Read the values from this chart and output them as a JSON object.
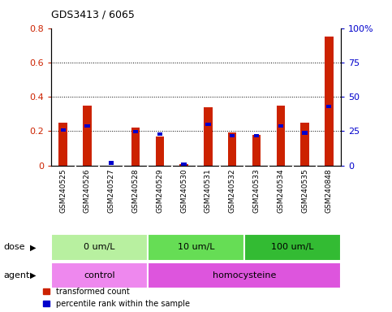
{
  "title": "GDS3413 / 6065",
  "samples": [
    "GSM240525",
    "GSM240526",
    "GSM240527",
    "GSM240528",
    "GSM240529",
    "GSM240530",
    "GSM240531",
    "GSM240532",
    "GSM240533",
    "GSM240534",
    "GSM240535",
    "GSM240848"
  ],
  "red_values": [
    0.25,
    0.35,
    0.0,
    0.22,
    0.17,
    0.005,
    0.34,
    0.19,
    0.18,
    0.35,
    0.25,
    0.75
  ],
  "blue_percentiles": [
    27,
    30,
    3,
    26,
    24,
    2,
    31,
    23,
    23,
    30,
    25,
    44
  ],
  "ylim_left": [
    0,
    0.8
  ],
  "ylim_right": [
    0,
    100
  ],
  "yticks_left": [
    0,
    0.2,
    0.4,
    0.6,
    0.8
  ],
  "yticks_right": [
    0,
    25,
    50,
    75,
    100
  ],
  "ytick_labels_right": [
    "0",
    "25",
    "50",
    "75",
    "100%"
  ],
  "dose_groups": [
    {
      "label": "0 um/L",
      "start": 0,
      "end": 3,
      "color": "#b8f0a0"
    },
    {
      "label": "10 um/L",
      "start": 4,
      "end": 7,
      "color": "#66dd55"
    },
    {
      "label": "100 um/L",
      "start": 8,
      "end": 11,
      "color": "#33bb33"
    }
  ],
  "agent_groups": [
    {
      "label": "control",
      "start": 0,
      "end": 3,
      "color": "#ee88ee"
    },
    {
      "label": "homocysteine",
      "start": 4,
      "end": 11,
      "color": "#dd55dd"
    }
  ],
  "dose_label": "dose",
  "agent_label": "agent",
  "red_color": "#cc2200",
  "blue_color": "#0000cc",
  "xtick_bg_color": "#cccccc",
  "legend_red": "transformed count",
  "legend_blue": "percentile rank within the sample"
}
